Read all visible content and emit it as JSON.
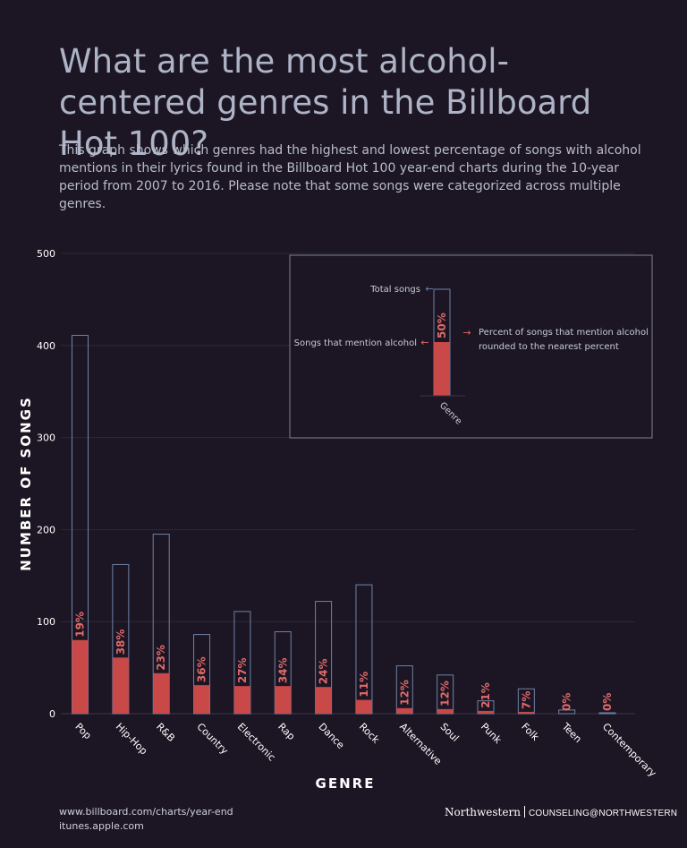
{
  "header": {
    "title": "What are the most alcohol-centered genres in the Billboard Hot 100?",
    "subtitle": "This graph shows which genres had the highest and lowest percentage of songs with alcohol mentions in their lyrics found in the Billboard Hot 100 year-end charts during the 10-year period from 2007 to 2016. Please note that some songs were categorized across multiple genres."
  },
  "colors": {
    "background": "#1c1624",
    "total_outline": "#6f82a6",
    "alcohol_fill": "#c94848",
    "percent_label": "#e06a6a",
    "grid": "#2c2838",
    "axis_text": "#ffffff"
  },
  "chart_data": {
    "type": "bar",
    "xlabel": "GENRE",
    "ylabel": "NUMBER OF SONGS",
    "ylim": [
      0,
      500
    ],
    "yticks": [
      0,
      100,
      200,
      300,
      400,
      500
    ],
    "grid": true,
    "categories": [
      "Pop",
      "Hip-Hop",
      "R&B",
      "Country",
      "Electronic",
      "Rap",
      "Dance",
      "Rock",
      "Alternative",
      "Soul",
      "Punk",
      "Folk",
      "Teen",
      "Contemporary"
    ],
    "series": [
      {
        "name": "Total songs",
        "values": [
          411,
          162,
          195,
          86,
          111,
          89,
          122,
          140,
          52,
          42,
          14,
          27,
          4,
          1
        ]
      },
      {
        "name": "Songs that mention alcohol",
        "values": [
          80,
          61,
          44,
          31,
          30,
          30,
          29,
          15,
          6,
          5,
          3,
          2,
          0,
          0
        ]
      }
    ],
    "percent_labels": [
      "19%",
      "38%",
      "23%",
      "36%",
      "27%",
      "34%",
      "24%",
      "11%",
      "12%",
      "12%",
      "21%",
      "7%",
      "0%",
      "0%"
    ],
    "legend": {
      "placement": "top-right",
      "total_label": "Total songs",
      "alcohol_label": "Songs that mention alcohol",
      "percent_label": "50%",
      "percent_desc_line1": "Percent of songs that mention alcohol",
      "percent_desc_line2": "rounded to the nearest percent",
      "genre_label": "Genre",
      "arrow_left": "←",
      "arrow_right": "→"
    }
  },
  "footer": {
    "sources": [
      "www.billboard.com/charts/year-end",
      "itunes.apple.com"
    ],
    "brand_primary": "Northwestern",
    "brand_secondary": "COUNSELING@NORTHWESTERN"
  }
}
